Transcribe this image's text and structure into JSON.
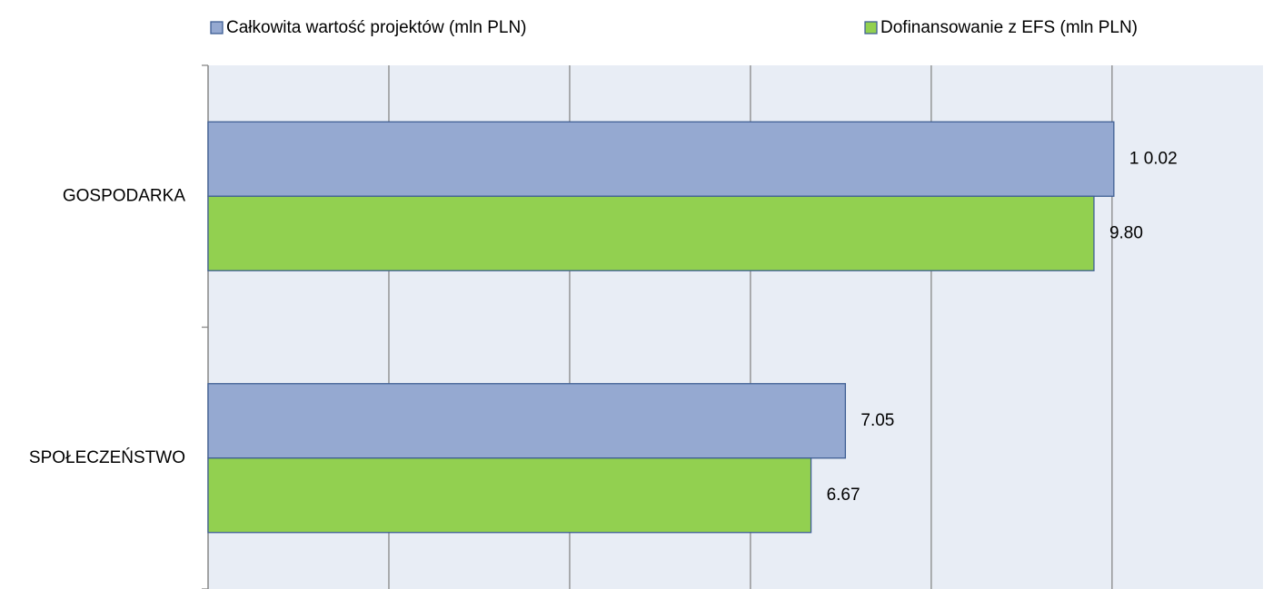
{
  "chart_data": {
    "type": "hbar",
    "categories": [
      "GOSPODARKA",
      "SPOŁECZEŃSTWO"
    ],
    "series": [
      {
        "name": "Całkowita wartość projektów (mln PLN)",
        "color": "#95a9d1",
        "values": [
          10.02,
          7.05
        ],
        "value_labels": [
          "1 0.02",
          "7.05"
        ]
      },
      {
        "name": "Dofinansowanie z EFS (mln PLN)",
        "color": "#92d050",
        "values": [
          9.8,
          6.67
        ],
        "value_labels": [
          "9.80",
          "6.67"
        ]
      }
    ],
    "xlim": [
      0,
      11.67
    ],
    "xticks": [
      0,
      2,
      4,
      6,
      8,
      10
    ],
    "grid": true,
    "legend": "top"
  }
}
